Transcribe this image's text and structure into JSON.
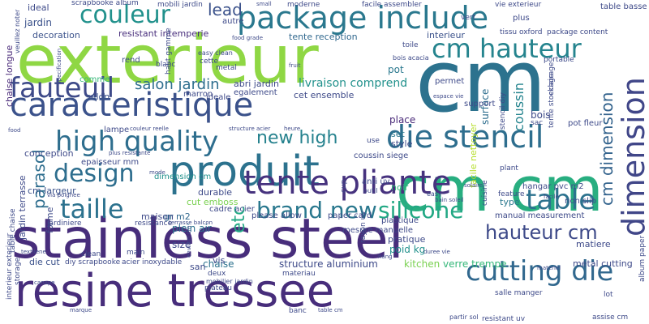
{
  "word_cloud": {
    "words": [
      {
        "text": "stainless steel",
        "color": "#472d7b"
      },
      {
        "text": "cm cm",
        "color": "#28ae80"
      },
      {
        "text": "cm",
        "color": "#2c728e"
      },
      {
        "text": "exterieur",
        "color": "#8fd744"
      },
      {
        "text": "package include",
        "color": "#2a788e"
      },
      {
        "text": "resine tressee",
        "color": "#472d7b"
      },
      {
        "text": "caracteristique",
        "color": "#3b528b"
      },
      {
        "text": "produit",
        "color": "#2c728e"
      },
      {
        "text": "tente pliante",
        "color": "#46327e"
      },
      {
        "text": "couleur",
        "color": "#21918c"
      },
      {
        "text": "cm hauteur",
        "color": "#25848e"
      },
      {
        "text": "high quality",
        "color": "#2e6e8e"
      },
      {
        "text": "die stencil",
        "color": "#2e6e8e"
      },
      {
        "text": "fauteuil",
        "color": "#3e4a89"
      },
      {
        "text": "dimension",
        "color": "#404688"
      },
      {
        "text": "cutting die",
        "color": "#31688e"
      },
      {
        "text": "design",
        "color": "#2e6e8e"
      },
      {
        "text": "taille",
        "color": "#2c728e"
      },
      {
        "text": "table",
        "color": "#2c728e"
      },
      {
        "text": "brand new",
        "color": "#2a788e"
      },
      {
        "text": "lead",
        "color": "#3b528b"
      },
      {
        "text": "silicone",
        "color": "#22a884"
      },
      {
        "text": "hauteur cm",
        "color": "#3e4a89"
      },
      {
        "text": "parasol",
        "color": "#2e6e8e"
      },
      {
        "text": "new high",
        "color": "#26828e"
      },
      {
        "text": "cm dimension",
        "color": "#33638d"
      },
      {
        "text": "salon jardin",
        "color": "#2e6e8e"
      },
      {
        "text": "livraison comprend",
        "color": "#21918c"
      },
      {
        "text": "etc",
        "color": "#22a884"
      },
      {
        "text": "coussin",
        "color": "#25848e"
      },
      {
        "text": "resistant intemperie",
        "color": "#472d7b"
      },
      {
        "text": "tente reception",
        "color": "#31688e"
      },
      {
        "text": "chaise",
        "color": "#2c728e"
      },
      {
        "text": "structure aluminium",
        "color": "#3e4a89"
      },
      {
        "text": "verre trempe",
        "color": "#35b779"
      },
      {
        "text": "metal cutting",
        "color": "#3e4a89"
      },
      {
        "text": "matiere",
        "color": "#3e4a89"
      },
      {
        "text": "kitchen",
        "color": "#7ad151"
      },
      {
        "text": "plein air",
        "color": "#2c728e"
      },
      {
        "text": "size",
        "color": "#3e4a89"
      },
      {
        "text": "poid kg",
        "color": "#21918c"
      },
      {
        "text": "pratique",
        "color": "#3e4a89"
      },
      {
        "text": "durable",
        "color": "#3e4a89"
      },
      {
        "text": "cut emboss",
        "color": "#7ad151"
      },
      {
        "text": "noir",
        "color": "#35b779"
      },
      {
        "text": "type",
        "color": "#2a788e"
      },
      {
        "text": "place",
        "color": "#482878"
      },
      {
        "text": "set",
        "color": "#2a788e"
      },
      {
        "text": "style",
        "color": "#3e4a89"
      },
      {
        "text": "pot",
        "color": "#2a788e"
      },
      {
        "text": "bois",
        "color": "#3e4a89"
      },
      {
        "text": "surface",
        "color": "#2e6e8e"
      },
      {
        "text": "facile nettoyer",
        "color": "#b5de2b"
      },
      {
        "text": "cet ensemble",
        "color": "#3e4a89"
      },
      {
        "text": "abri jardin",
        "color": "#3e4a89"
      },
      {
        "text": "gr m2",
        "color": "#31688e"
      },
      {
        "text": "cm largeur",
        "color": "#3b528b"
      },
      {
        "text": "jardin",
        "color": "#3b528b"
      },
      {
        "text": "decoration",
        "color": "#3b528b"
      },
      {
        "text": "ideal",
        "color": "#3e4a89"
      },
      {
        "text": "chaise longue",
        "color": "#482878"
      },
      {
        "text": "maison",
        "color": "#3e4a89"
      },
      {
        "text": "forme",
        "color": "#3e4a89"
      },
      {
        "text": "jardin terrasse",
        "color": "#3e4a89"
      },
      {
        "text": "san",
        "color": "#3e4a89"
      },
      {
        "text": "vis",
        "color": "#3e4a89"
      },
      {
        "text": "die cut",
        "color": "#3b528b"
      },
      {
        "text": "conception",
        "color": "#3e4a89"
      },
      {
        "text": "salon",
        "color": "#3b528b"
      },
      {
        "text": "table basse",
        "color": "#3e4a89"
      },
      {
        "text": "interieur",
        "color": "#3b528b"
      },
      {
        "text": "cadre acier",
        "color": "#3e4a89"
      },
      {
        "text": "please allow",
        "color": "#3e4a89"
      },
      {
        "text": "paper card",
        "color": "#3e4a89"
      },
      {
        "text": "hangar pvc m2",
        "color": "#3e4a89"
      },
      {
        "text": "non slip",
        "color": "#3e4a89"
      },
      {
        "text": "manual measurement",
        "color": "#3e4a89"
      },
      {
        "text": "mesure manuelle",
        "color": "#3e4a89"
      },
      {
        "text": "plastique",
        "color": "#3e4a89"
      },
      {
        "text": "anti uv",
        "color": "#3e4a89"
      },
      {
        "text": "coussin siege",
        "color": "#3e4a89"
      },
      {
        "text": "permet",
        "color": "#3e4a89"
      },
      {
        "text": "support",
        "color": "#3e4a89"
      },
      {
        "text": "egalement",
        "color": "#3e4a89"
      },
      {
        "text": "rend",
        "color": "#3e4a89"
      },
      {
        "text": "marron",
        "color": "#3e4a89"
      },
      {
        "text": "ideale",
        "color": "#3e4a89"
      },
      {
        "text": "lampe",
        "color": "#3e4a89"
      },
      {
        "text": "epaisseur mm",
        "color": "#3e4a89"
      },
      {
        "text": "dimension cm",
        "color": "#21918c"
      },
      {
        "text": "moderne",
        "color": "#3e4a89"
      },
      {
        "text": "mobili jardin",
        "color": "#3e4a89"
      },
      {
        "text": "facile assembler",
        "color": "#3e4a89"
      },
      {
        "text": "vie exterieur",
        "color": "#3e4a89"
      },
      {
        "text": "scrapbooke album",
        "color": "#3e4a89"
      },
      {
        "text": "autre",
        "color": "#3e4a89"
      },
      {
        "text": "metal",
        "color": "#3e4a89"
      },
      {
        "text": "cette",
        "color": "#3e4a89"
      },
      {
        "text": "blanc",
        "color": "#3e4a89"
      },
      {
        "text": "haut gamme",
        "color": "#3e4a89"
      },
      {
        "text": "easy clean",
        "color": "#3e4a89"
      },
      {
        "text": "comme",
        "color": "#35b779"
      },
      {
        "text": "toile",
        "color": "#3e4a89"
      },
      {
        "text": "bois acacia",
        "color": "#3e4a89"
      },
      {
        "text": "portable",
        "color": "#3e4a89"
      },
      {
        "text": "plus",
        "color": "#3e4a89"
      },
      {
        "text": "tissu oxford",
        "color": "#3e4a89"
      },
      {
        "text": "package content",
        "color": "#3e4a89"
      },
      {
        "text": "vert",
        "color": "#3e4a89"
      },
      {
        "text": "food grade",
        "color": "#3e4a89"
      },
      {
        "text": "tente stockage",
        "color": "#3e4a89"
      },
      {
        "text": "stencil diy",
        "color": "#3e4a89"
      },
      {
        "text": "pot fleur",
        "color": "#3e4a89"
      },
      {
        "text": "eclairage",
        "color": "#3e4a89"
      },
      {
        "text": "sac",
        "color": "#3e4a89"
      },
      {
        "text": "structure acier",
        "color": "#3e4a89"
      },
      {
        "text": "couleur reelle",
        "color": "#3e4a89"
      },
      {
        "text": "plant",
        "color": "#3e4a89"
      },
      {
        "text": "cuisine",
        "color": "#3e4a89"
      },
      {
        "text": "feature",
        "color": "#3e4a89"
      },
      {
        "text": "easy",
        "color": "#3e4a89"
      },
      {
        "text": "rayon uv",
        "color": "#3e4a89"
      },
      {
        "text": "cup",
        "color": "#3e4a89"
      },
      {
        "text": "outil",
        "color": "#3e4a89"
      },
      {
        "text": "use",
        "color": "#3e4a89"
      },
      {
        "text": "heure",
        "color": "#3e4a89"
      },
      {
        "text": "via poignee",
        "color": "#3e4a89"
      },
      {
        "text": "table chaise",
        "color": "#3e4a89"
      },
      {
        "text": "jardiniere",
        "color": "#3e4a89"
      },
      {
        "text": "resistance",
        "color": "#3e4a89"
      },
      {
        "text": "terrasse balcon",
        "color": "#3e4a89"
      },
      {
        "text": "interieur exterieur",
        "color": "#3e4a89"
      },
      {
        "text": "textilene",
        "color": "#3e4a89"
      },
      {
        "text": "clean",
        "color": "#3e4a89"
      },
      {
        "text": "main",
        "color": "#3e4a89"
      },
      {
        "text": "diy scrapbooke",
        "color": "#3e4a89"
      },
      {
        "text": "acier inoxydable",
        "color": "#3e4a89"
      },
      {
        "text": "deux",
        "color": "#3e4a89"
      },
      {
        "text": "plateau",
        "color": "#3e4a89"
      },
      {
        "text": "mobilier jardin",
        "color": "#3e4a89"
      },
      {
        "text": "storage",
        "color": "#3e4a89"
      },
      {
        "text": "banc",
        "color": "#3e4a89"
      },
      {
        "text": "table cm",
        "color": "#3e4a89"
      },
      {
        "text": "partir sol",
        "color": "#3e4a89"
      },
      {
        "text": "resistant uv",
        "color": "#3e4a89"
      },
      {
        "text": "salle manger",
        "color": "#3e4a89"
      },
      {
        "text": "assise cm",
        "color": "#3e4a89"
      },
      {
        "text": "lot",
        "color": "#3e4a89"
      },
      {
        "text": "materiau",
        "color": "#3e4a89"
      },
      {
        "text": "hang",
        "color": "#3e4a89"
      },
      {
        "text": "duree vie",
        "color": "#3e4a89"
      },
      {
        "text": "materiel",
        "color": "#3e4a89"
      },
      {
        "text": "album paper",
        "color": "#3e4a89"
      },
      {
        "text": "small",
        "color": "#3e4a89"
      },
      {
        "text": "marque",
        "color": "#3e4a89"
      },
      {
        "text": "veuillez noter",
        "color": "#3e4a89"
      },
      {
        "text": "espace vie",
        "color": "#3e4a89"
      },
      {
        "text": "solaire",
        "color": "#3e4a89"
      },
      {
        "text": "fruit",
        "color": "#3e4a89"
      },
      {
        "text": "food",
        "color": "#3e4a89"
      },
      {
        "text": "mode",
        "color": "#3e4a89"
      },
      {
        "text": "plus resistante",
        "color": "#3e4a89"
      },
      {
        "text": "canape",
        "color": "#3e4a89"
      },
      {
        "text": "environ cm",
        "color": "#3e4a89"
      },
      {
        "text": "facile",
        "color": "#3e4a89"
      },
      {
        "text": "specification",
        "color": "#3e4a89"
      },
      {
        "text": "bain soleil",
        "color": "#3e4a89"
      }
    ]
  }
}
